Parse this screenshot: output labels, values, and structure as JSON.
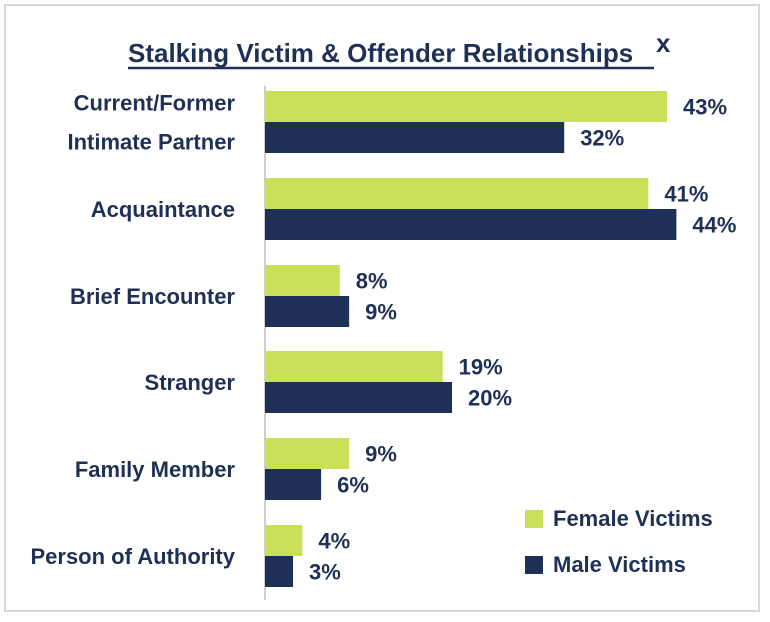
{
  "chart_data": {
    "type": "bar",
    "orientation": "horizontal",
    "title": "Stalking Victim & Offender Relationships",
    "title_superscript": "x",
    "categories": [
      [
        "Current/Former",
        "Intimate Partner"
      ],
      [
        "Acquaintance"
      ],
      [
        "Brief Encounter"
      ],
      [
        "Stranger"
      ],
      [
        "Family Member"
      ],
      [
        "Person of Authority"
      ]
    ],
    "series": [
      {
        "name": "Female Victims",
        "color": "#c8e05a",
        "values": [
          43,
          41,
          8,
          19,
          9,
          4
        ]
      },
      {
        "name": "Male Victims",
        "color": "#1f3056",
        "values": [
          32,
          44,
          9,
          20,
          6,
          3
        ]
      }
    ],
    "value_suffix": "%",
    "xlim": [
      0,
      50
    ],
    "grid": false,
    "legend_position": "bottom-right"
  }
}
